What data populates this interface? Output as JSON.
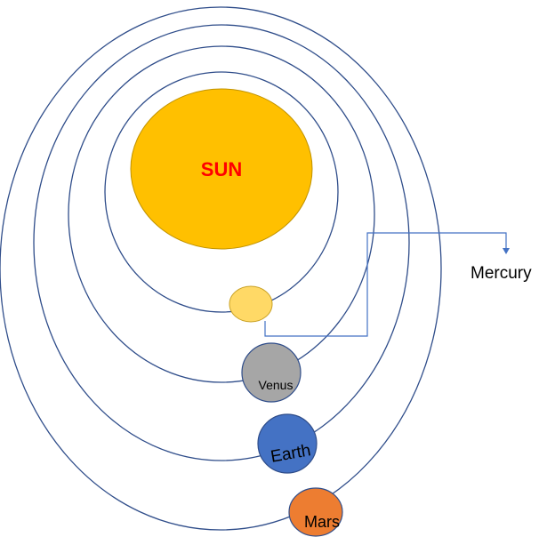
{
  "sun": {
    "label": "SUN",
    "fill": "#FFC000",
    "stroke": "#C09200",
    "label_color": "#FF0000"
  },
  "planets": [
    {
      "id": "mercury",
      "label": "",
      "fill": "#FFD966",
      "stroke": "#C9A227"
    },
    {
      "id": "venus",
      "label": "Venus",
      "fill": "#A6A6A6",
      "stroke": "#2F4D8A"
    },
    {
      "id": "earth",
      "label": "Earth",
      "fill": "#4472C4",
      "stroke": "#2F4D8A"
    },
    {
      "id": "mars",
      "label": "Mars",
      "fill": "#ED7D31",
      "stroke": "#2F4D8A"
    }
  ],
  "callout": {
    "label": "Mercury",
    "line_color": "#4472C4"
  },
  "orbit_color": "#2F4D8A"
}
